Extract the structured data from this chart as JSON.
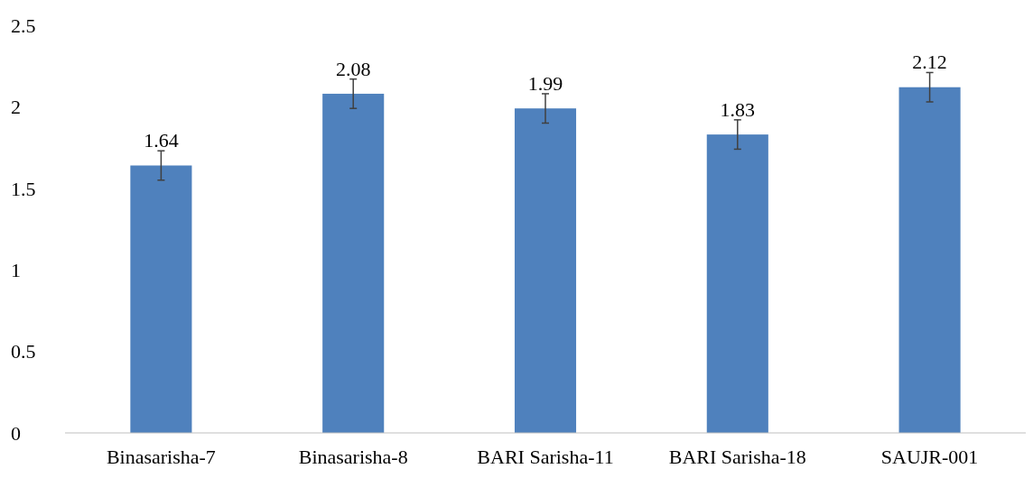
{
  "chart_data": {
    "type": "bar",
    "categories": [
      "Binasarisha-7",
      "Binasarisha-8",
      "BARI Sarisha-11",
      "BARI Sarisha-18",
      "SAUJR-001"
    ],
    "values": [
      1.64,
      2.08,
      1.99,
      1.83,
      2.12
    ],
    "errors": [
      0.09,
      0.09,
      0.09,
      0.09,
      0.09
    ],
    "color": "#4f81bd",
    "ylim": [
      0,
      2.5
    ],
    "yticks": [
      0,
      0.5,
      1,
      1.5,
      2,
      2.5
    ],
    "data_labels": true
  }
}
